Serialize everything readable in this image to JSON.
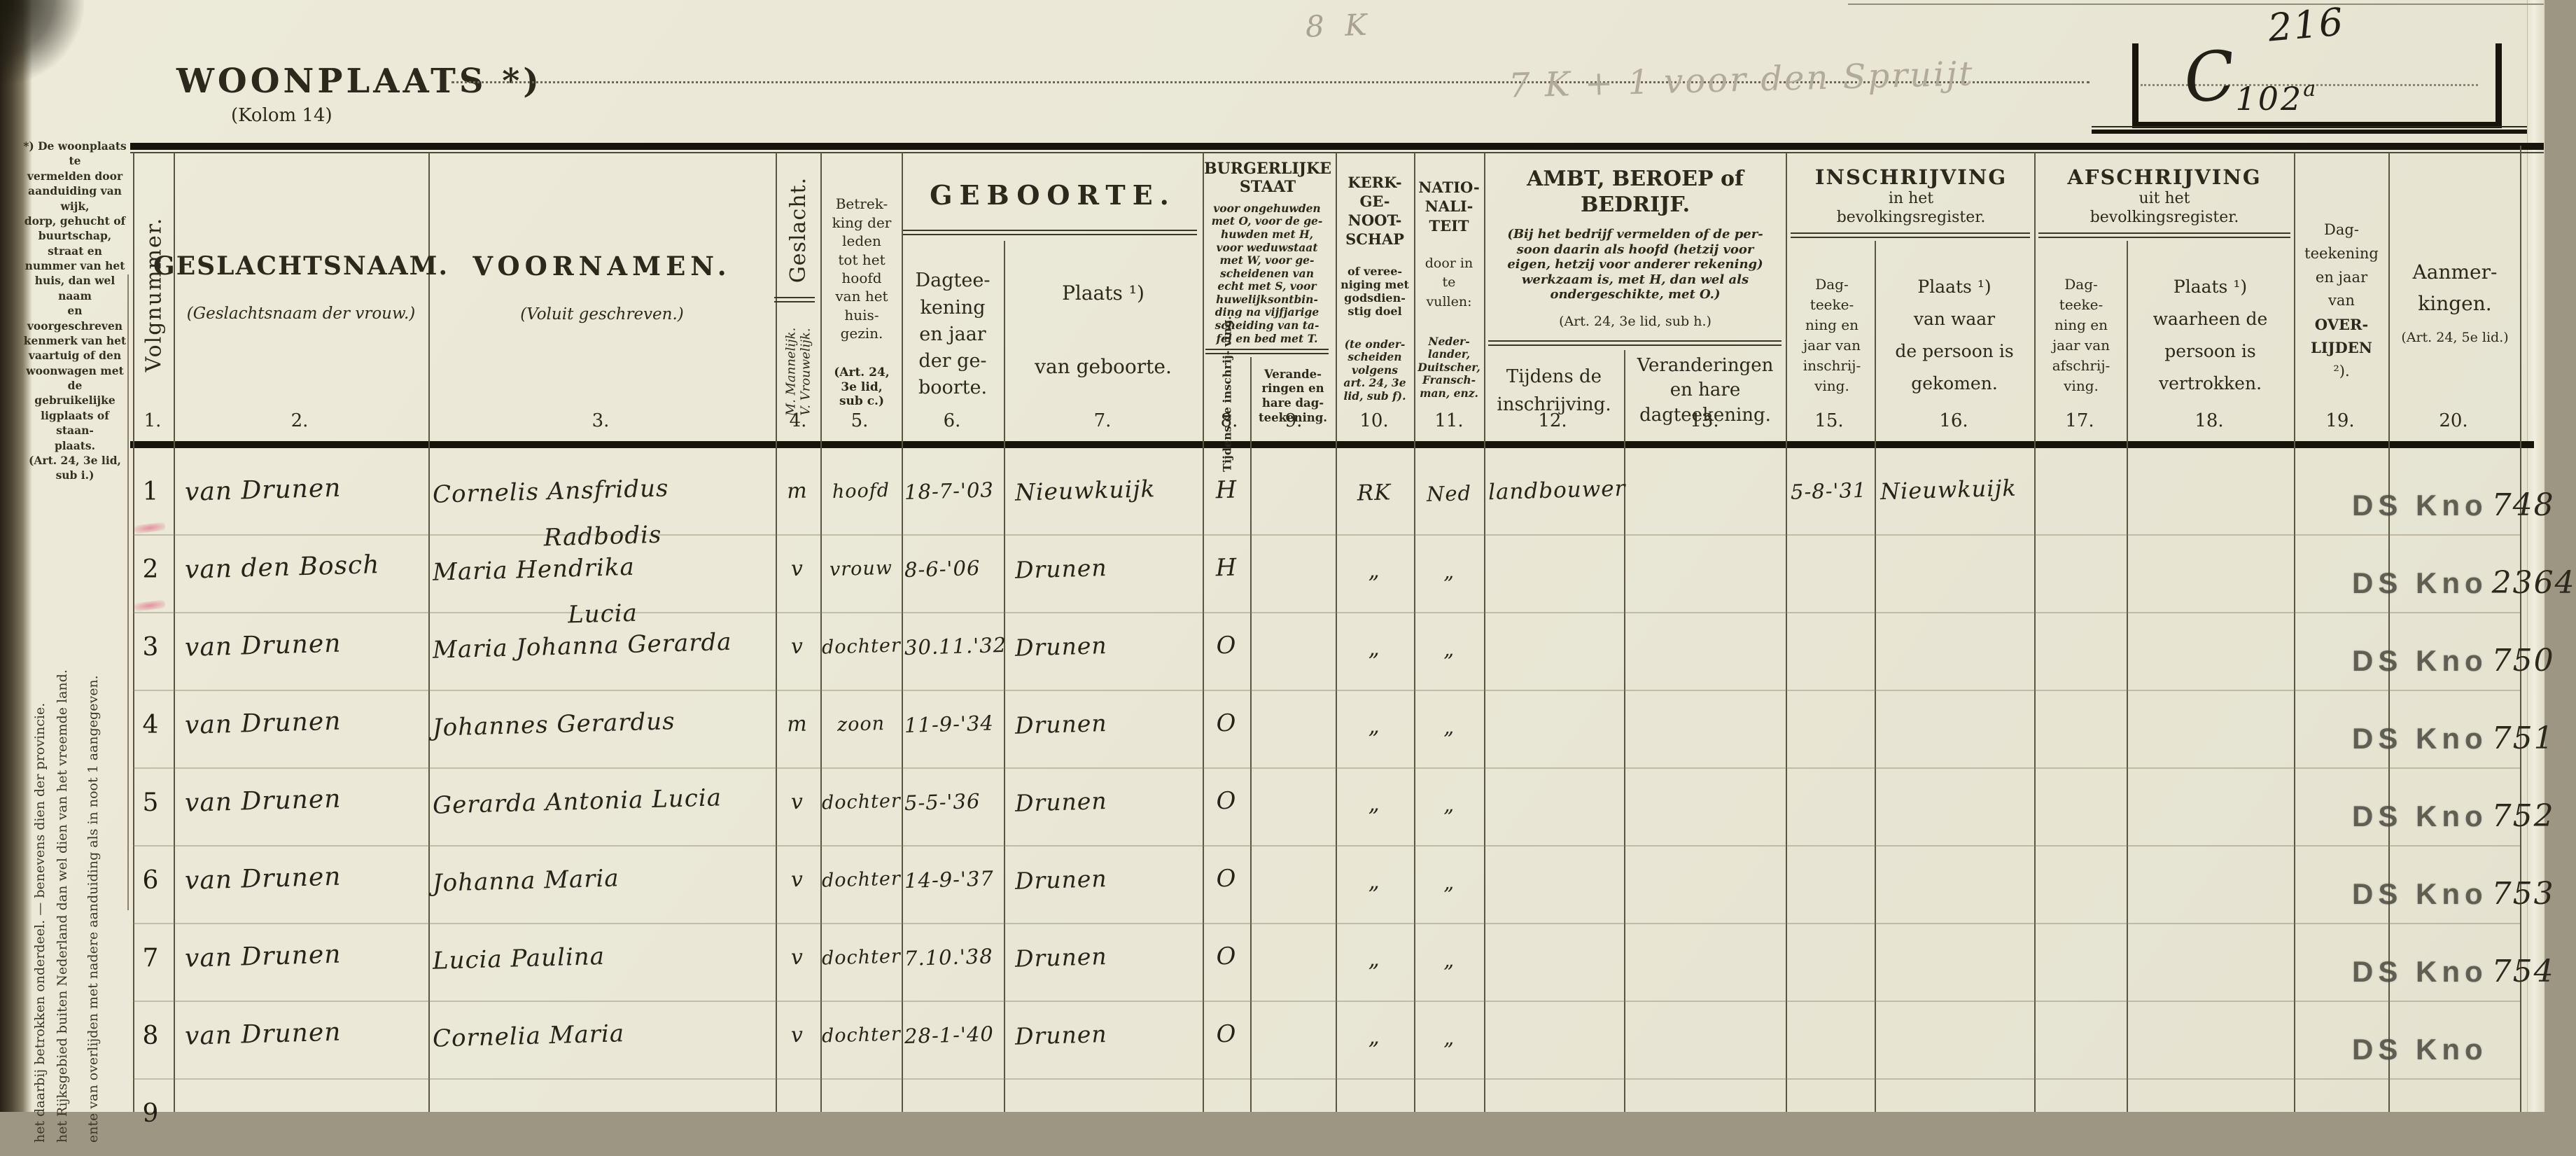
{
  "page": {
    "woonplaats_label": "WOONPLAATS *)",
    "kolom_label": "(Kolom 14)",
    "pencil_note_top": "8 K",
    "pencil_note": "7 K + 1 voor den Spruijt",
    "register_number": "216",
    "house_code_letter": "C",
    "house_code_number": "102",
    "house_code_suffix": "a"
  },
  "footnote_left": "*) De woonplaats te\nvermelden door\naanduiding van wijk,\ndorp, gehucht of\nbuurtschap, straat en\nnummer van het\nhuis, dan wel naam\nen voorgeschreven\nkenmerk van het\nvaartuig of den\nwoonwagen met de\ngebruikelijke\nligplaats of staan-\nplaats.\n(Art. 24, 3e lid, sub i.)",
  "margin_vertical": {
    "line1": "het daarbij betrokken onderdeel. — benevens dien der provincie.",
    "line2": "het Rijksgebied buiten Nederland dan wel dien van het vreemde land.",
    "line3": "ente van overlijden met nadere aanduiding als in noot 1 aangegeven."
  },
  "header": {
    "col1_label": "Volgnummer.",
    "col2_title": "GESLACHTSNAAM.",
    "col2_sub": "(Geslachtsnaam der vrouw.)",
    "col3_title": "VOORNAMEN.",
    "col3_sub": "(Voluit geschreven.)",
    "col4_title": "Geslacht.",
    "col4_sub1": "M. Mannelijk.",
    "col4_sub2": "V. Vrouwelijk.",
    "col5_main": "Betrek-\nking der\nleden\ntot het\nhoofd\nvan het\nhuis-\ngezin.",
    "col5_art": "(Art. 24,\n3e lid,\nsub c.)",
    "geboorte_title": "GEBOORTE.",
    "col6_main": "Dagtee-\nkening\nen jaar\nder ge-\nboorte.",
    "col7_line1": "Plaats ¹)",
    "col7_line2": "van geboorte.",
    "burgstaat_title": "BURGERLIJKE\nSTAAT",
    "burgstaat_text": "voor ongehuwden\nmet O, voor de ge-\nhuwden met H,\nvoor weduwstaat\nmet W, voor ge-\nscheidenen van\necht met S, voor\nhuwelijksontbin-\nding na vijfjarige\nscheiding van ta-\nfel en bed met T.",
    "col8_label": "Tijdens de\ninschrij-\nving.",
    "col9_label": "Verande-\nringen en\nhare dag-\nteekening.",
    "col10_title": "KERK-\nGE-\nNOOT-\nSCHAP",
    "col10_text1": "of veree-\nniging met\ngodsdien-\nstig doel",
    "col10_text2": "(te onder-\nscheiden\nvolgens\nart. 24, 3e\nlid, sub f).",
    "col11_title": "NATIO-\nNALI-\nTEIT",
    "col11_text1": "door in\nte\nvullen:",
    "col11_text2": "Neder-\nlander,\nDuitscher,\nFransch-\nman, enz.",
    "ambt_title": "AMBT, BEROEP of\nBEDRIJF.",
    "ambt_text": "(Bij het bedrijf vermelden of de per-\nsoon daarin als hoofd (hetzij voor\neigen, hetzij voor anderer rekening)\nwerkzaam is, met H, dan wel als\nondergeschikte, met O.)",
    "ambt_art": "(Art. 24, 3e lid, sub h.)",
    "col12_label": "Tijdens de\ninschrijving.",
    "col13_label": "Veranderingen\nen hare\ndagteekening.",
    "inschrijving_title": "INSCHRIJVING",
    "inschrijving_sub": "in het\nbevolkingsregister.",
    "afschrijving_title": "AFSCHRIJVING",
    "afschrijving_sub": "uit het\nbevolkingsregister.",
    "col15_label": "Dag-\nteeke-\nning en\njaar van\ninschrij-\nving.",
    "col16_label": "Plaats ¹)\nvan waar\nde persoon is\ngekomen.",
    "col17_label": "Dag-\nteeke-\nning en\njaar van\nafschrij-\nving.",
    "col18_label": "Plaats ¹)\nwaarheen de\npersoon is\nvertrokken.",
    "col19_pre": "Dag-\nteekening\nen jaar\nvan",
    "col19_bold": "OVER-\nLIJDEN",
    "col19_post": "²).",
    "col20_title": "Aanmer-\nkingen.",
    "col20_art": "(Art. 24, 5e lid.)",
    "col_numbers": [
      "1.",
      "2.",
      "3.",
      "4.",
      "5.",
      "6.",
      "7.",
      "8.",
      "9.",
      "10.",
      "11.",
      "12.",
      "13.",
      "15.",
      "16.",
      "17.",
      "18.",
      "19.",
      "20."
    ]
  },
  "stamp_label": "DS Kno",
  "rows": [
    {
      "num": "1",
      "surname": "van Drunen",
      "given": "Cornelis Ansfridus",
      "given2": "Radbodis",
      "sex": "m",
      "relation": "hoofd",
      "birth_date": "18-7-'03",
      "birth_place": "Nieuwkuijk",
      "status": "H",
      "church": "RK",
      "nationality": "Ned",
      "occupation": "landbouwer",
      "reg_date": "5-8-'31",
      "reg_place": "Nieuwkuijk",
      "has_stamp": true,
      "stamp_no": "748",
      "red_mark": true
    },
    {
      "num": "2",
      "surname": "van den Bosch",
      "given": "Maria Hendrika",
      "given2": "Lucia",
      "sex": "v",
      "relation": "vrouw",
      "birth_date": "8-6-'06",
      "birth_place": "Drunen",
      "status": "H",
      "church": "„",
      "nationality": "„",
      "has_stamp": true,
      "stamp_no": "2364",
      "red_mark": true
    },
    {
      "num": "3",
      "surname": "van Drunen",
      "given": "Maria Johanna Gerarda",
      "sex": "v",
      "relation": "dochter",
      "birth_date": "30.11.'32",
      "birth_place": "Drunen",
      "status": "O",
      "church": "„",
      "nationality": "„",
      "has_stamp": true,
      "stamp_no": "750"
    },
    {
      "num": "4",
      "surname": "van Drunen",
      "given": "Johannes Gerardus",
      "sex": "m",
      "relation": "zoon",
      "birth_date": "11-9-'34",
      "birth_place": "Drunen",
      "status": "O",
      "church": "„",
      "nationality": "„",
      "has_stamp": true,
      "stamp_no": "751"
    },
    {
      "num": "5",
      "surname": "van Drunen",
      "given": "Gerarda Antonia Lucia",
      "sex": "v",
      "relation": "dochter",
      "birth_date": "5-5-'36",
      "birth_place": "Drunen",
      "status": "O",
      "church": "„",
      "nationality": "„",
      "has_stamp": true,
      "stamp_no": "752"
    },
    {
      "num": "6",
      "surname": "van Drunen",
      "given": "Johanna Maria",
      "sex": "v",
      "relation": "dochter",
      "birth_date": "14-9-'37",
      "birth_place": "Drunen",
      "status": "O",
      "church": "„",
      "nationality": "„",
      "has_stamp": true,
      "stamp_no": "753"
    },
    {
      "num": "7",
      "surname": "van Drunen",
      "given": "Lucia Paulina",
      "sex": "v",
      "relation": "dochter",
      "birth_date": "7.10.'38",
      "birth_place": "Drunen",
      "status": "O",
      "church": "„",
      "nationality": "„",
      "has_stamp": true,
      "stamp_no": "754"
    },
    {
      "num": "8",
      "surname": "van Drunen",
      "given": "Cornelia Maria",
      "sex": "v",
      "relation": "dochter",
      "birth_date": "28-1-'40",
      "birth_place": "Drunen",
      "status": "O",
      "church": "„",
      "nationality": "„",
      "has_stamp": true,
      "stamp_no": ""
    },
    {
      "num": "9"
    }
  ]
}
